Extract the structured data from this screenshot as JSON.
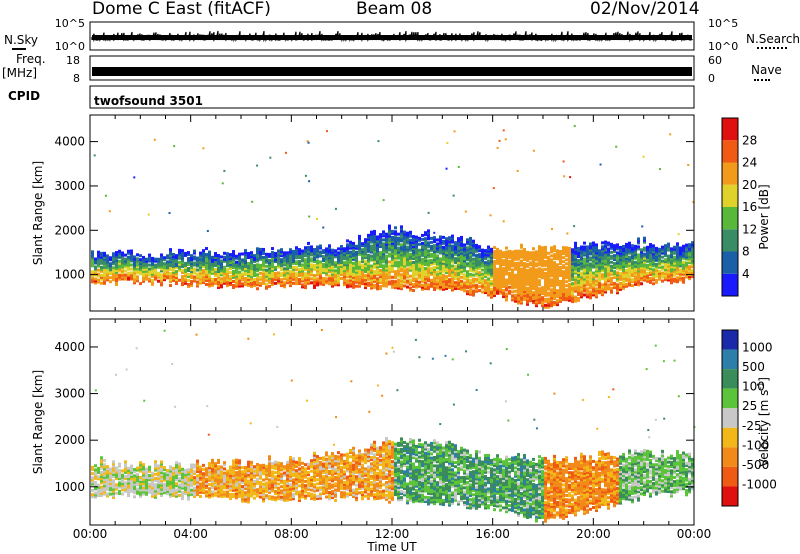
{
  "header": {
    "station": "Dome C East (fitACF)",
    "beam": "Beam 08",
    "date": "02/Nov/2014"
  },
  "status_panels": {
    "nsky_label": "N.Sky",
    "nsky_ticks": [
      "10^5",
      "10^0"
    ],
    "nsearch_label": "N.Search",
    "nsearch_ticks": [
      "10^5",
      "10^0"
    ],
    "freq_label": "Freq.",
    "freq_unit": "[MHz]",
    "freq_ticks": [
      "18",
      "8"
    ],
    "nave_label": "Nave",
    "nave_ticks": [
      "60",
      "0"
    ],
    "cpid_label": "CPID",
    "cpid_value": "twofsound 3501"
  },
  "chart_data": [
    {
      "type": "heatmap",
      "title": "",
      "ylabel": "Slant Range [km]",
      "xlabel": "",
      "yticks": [
        "1000",
        "2000",
        "3000",
        "4000"
      ],
      "ylim": [
        180,
        4600
      ],
      "xlim": [
        0,
        24
      ],
      "colorbar": {
        "label": "Power [dB]",
        "ticks": [
          "4",
          "8",
          "12",
          "16",
          "20",
          "24",
          "28"
        ],
        "colors": [
          "#1a1aff",
          "#1b5fa8",
          "#3a8c66",
          "#59b83a",
          "#e0d22a",
          "#f29a1a",
          "#f05a14",
          "#e01010"
        ]
      },
      "echo_band": {
        "lower_edge_km": [
          780,
          820,
          760,
          700,
          720,
          740,
          700,
          640,
          520,
          260,
          500,
          780,
          880
        ],
        "upper_edge_km": [
          1500,
          1420,
          1450,
          1500,
          1550,
          1650,
          2000,
          1850,
          1600,
          1550,
          1620,
          1700,
          1600
        ],
        "hours": [
          0,
          2,
          4,
          6,
          8,
          10,
          12,
          14,
          16,
          18,
          20,
          22,
          24
        ]
      }
    },
    {
      "type": "heatmap",
      "title": "",
      "ylabel": "Slant Range [km]",
      "xlabel": "Time UT",
      "yticks": [
        "1000",
        "2000",
        "3000",
        "4000"
      ],
      "xticks": [
        "00:00",
        "04:00",
        "08:00",
        "12:00",
        "16:00",
        "20:00",
        "00:00"
      ],
      "ylim": [
        180,
        4600
      ],
      "xlim": [
        0,
        24
      ],
      "colorbar": {
        "label": "Velocity [m s",
        "label_sup": "-1",
        "label_end": "]",
        "ticks": [
          "1000",
          "500",
          "100",
          "25",
          "-25",
          "-100",
          "-500",
          "-1000"
        ],
        "colors": [
          "#1a2aa8",
          "#2c7fa8",
          "#3a8c5a",
          "#5cc43a",
          "#c8c8c8",
          "#f2b81a",
          "#f28a1a",
          "#ef5a14",
          "#e01010"
        ]
      }
    }
  ]
}
